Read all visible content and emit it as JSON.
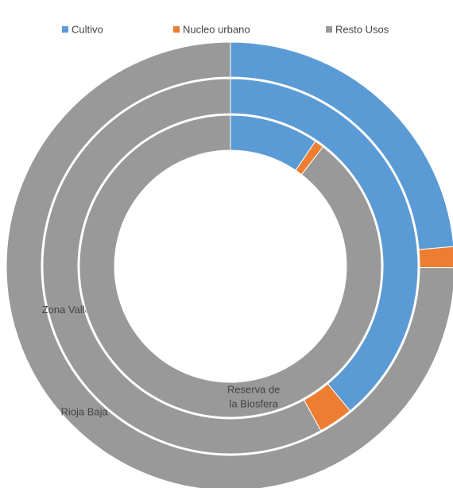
{
  "chart_data": {
    "type": "doughnut",
    "categories": [
      "Cultivo",
      "Nucleo urbano",
      "Resto Usos"
    ],
    "colors": [
      "#5b9bd5",
      "#ed7d31",
      "#999999"
    ],
    "legend": "top",
    "series": [
      {
        "name": "Rioja Baja",
        "values": [
          23.6,
          1.5,
          74.9
        ]
      },
      {
        "name": "Zona Valle",
        "values": [
          39,
          3,
          58
        ]
      },
      {
        "name": "Reserva de la Biosfera",
        "values": [
          9.5,
          1,
          89.5
        ]
      }
    ]
  }
}
